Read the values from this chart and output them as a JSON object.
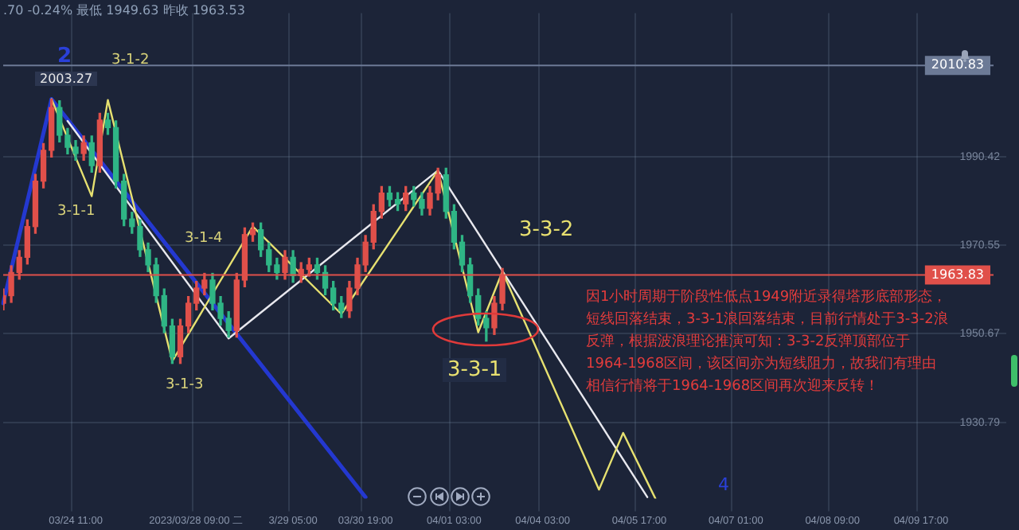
{
  "chart_data": {
    "type": "candlestick",
    "subtitle": ".70  -0.24%  最低 1949.63  昨收 1963.53",
    "categories": [
      null,
      null,
      null,
      null,
      null,
      null,
      null,
      null,
      null,
      "03/24 11:00",
      null,
      null,
      null,
      null,
      null,
      null,
      null,
      null,
      null,
      null,
      null,
      null,
      null,
      null,
      "2023/03/28 09:00 二",
      null,
      null,
      null,
      null,
      null,
      null,
      null,
      null,
      null,
      null,
      null,
      "3/29 05:00",
      null,
      null,
      null,
      null,
      null,
      null,
      null,
      null,
      "03/30 19:00",
      null,
      null,
      null,
      null,
      null,
      null,
      null,
      null,
      null,
      null,
      "04/01 03:00",
      null,
      null,
      null,
      null,
      null,
      null,
      null,
      null,
      null,
      null,
      "04/04 03:00",
      null,
      null,
      null,
      null,
      null,
      null,
      null,
      null,
      null,
      null,
      null,
      "04/05 17:00",
      null,
      null,
      null,
      null,
      null,
      null,
      null,
      null,
      null,
      null,
      null,
      "04/07 01:00",
      null,
      null,
      null,
      null,
      null,
      null,
      null,
      null,
      null,
      null,
      null,
      "04/08 09:00",
      null,
      null,
      null,
      null,
      null,
      null,
      null,
      null,
      null,
      null,
      "04/09 17:00",
      null,
      null,
      null,
      null,
      null,
      null,
      null,
      null,
      null
    ],
    "series": [
      {
        "type": "candlestick",
        "ohlc": [
          [
            1957.5,
            1960.7,
            1956.0,
            1959.2
          ],
          [
            1959.2,
            1965.9,
            1957.7,
            1964.4
          ],
          [
            1964.4,
            1969.3,
            1962.9,
            1967.8
          ],
          [
            1967.8,
            1976.2,
            1966.3,
            1974.7
          ],
          [
            1974.7,
            1986.4,
            1973.2,
            1984.9
          ],
          [
            1984.9,
            1993.3,
            1983.4,
            1991.8
          ],
          [
            1991.8,
            2003.27,
            1990.3,
            2001.4
          ],
          [
            2001.4,
            2002.9,
            1993.7,
            1995.2
          ],
          [
            1995.2,
            1996.7,
            1991.0,
            1992.5
          ],
          [
            1992.5,
            1994.0,
            1989.6,
            1991.1
          ],
          [
            1991.1,
            1995.0,
            1989.6,
            1993.5
          ],
          [
            1993.5,
            1995.0,
            1986.9,
            1988.4
          ],
          [
            1988.4,
            2000.1,
            1986.9,
            1998.6
          ],
          [
            1998.6,
            2000.1,
            1995.4,
            1996.9
          ],
          [
            1996.9,
            1998.4,
            1983.4,
            1984.9
          ],
          [
            1984.9,
            1986.4,
            1974.9,
            1976.4
          ],
          [
            1976.4,
            1977.9,
            1973.2,
            1974.7
          ],
          [
            1974.7,
            1976.2,
            1968.0,
            1969.5
          ],
          [
            1969.5,
            1971.0,
            1964.6,
            1966.1
          ],
          [
            1966.1,
            1967.6,
            1957.7,
            1959.2
          ],
          [
            1959.2,
            1960.7,
            1950.9,
            1952.4
          ],
          [
            1952.4,
            1953.9,
            1944.0,
            1945.5
          ],
          [
            1945.5,
            1953.9,
            1944.0,
            1952.4
          ],
          [
            1952.4,
            1959.0,
            1950.9,
            1957.5
          ],
          [
            1957.5,
            1962.4,
            1956.0,
            1960.9
          ],
          [
            1960.9,
            1964.2,
            1959.4,
            1962.7
          ],
          [
            1962.7,
            1964.2,
            1956.0,
            1957.5
          ],
          [
            1957.5,
            1959.0,
            1952.6,
            1954.1
          ],
          [
            1954.1,
            1955.6,
            1949.9,
            1951.4
          ],
          [
            1951.4,
            1964.2,
            1949.9,
            1962.7
          ],
          [
            1962.7,
            1974.4,
            1961.2,
            1972.9
          ],
          [
            1972.9,
            1975.5,
            1971.4,
            1974.0
          ],
          [
            1974.0,
            1975.5,
            1968.0,
            1969.5
          ],
          [
            1969.5,
            1971.0,
            1964.6,
            1966.1
          ],
          [
            1966.1,
            1967.6,
            1962.9,
            1964.4
          ],
          [
            1964.4,
            1969.3,
            1962.9,
            1967.8
          ],
          [
            1967.8,
            1969.3,
            1962.2,
            1963.7
          ],
          [
            1963.7,
            1966.6,
            1962.2,
            1965.1
          ],
          [
            1965.1,
            1967.6,
            1963.6,
            1966.1
          ],
          [
            1966.1,
            1967.6,
            1962.9,
            1964.4
          ],
          [
            1964.4,
            1965.9,
            1959.4,
            1960.9
          ],
          [
            1960.9,
            1962.4,
            1956.0,
            1957.5
          ],
          [
            1957.5,
            1959.0,
            1954.3,
            1955.8
          ],
          [
            1955.8,
            1962.4,
            1954.3,
            1960.9
          ],
          [
            1960.9,
            1967.6,
            1959.4,
            1966.1
          ],
          [
            1966.1,
            1972.7,
            1964.6,
            1971.2
          ],
          [
            1971.2,
            1979.6,
            1969.7,
            1978.1
          ],
          [
            1978.1,
            1983.7,
            1976.6,
            1982.2
          ],
          [
            1982.2,
            1983.7,
            1979.3,
            1980.8
          ],
          [
            1980.8,
            1982.3,
            1978.3,
            1979.8
          ],
          [
            1979.8,
            1983.7,
            1978.3,
            1982.2
          ],
          [
            1982.2,
            1983.7,
            1979.3,
            1980.8
          ],
          [
            1980.8,
            1982.3,
            1977.3,
            1978.8
          ],
          [
            1978.8,
            1983.7,
            1977.3,
            1982.2
          ],
          [
            1982.2,
            1987.8,
            1980.7,
            1986.3
          ],
          [
            1986.3,
            1987.8,
            1976.6,
            1978.1
          ],
          [
            1978.1,
            1979.6,
            1969.7,
            1971.2
          ],
          [
            1971.2,
            1972.7,
            1964.6,
            1966.1
          ],
          [
            1966.1,
            1967.6,
            1957.7,
            1959.2
          ],
          [
            1959.2,
            1960.7,
            1952.6,
            1954.1
          ],
          [
            1954.1,
            1955.6,
            1949.0,
            1952.0
          ],
          [
            1952.0,
            1959.0,
            1950.5,
            1957.5
          ],
          [
            1957.5,
            1965.3,
            1956.0,
            1963.83
          ],
          null,
          null,
          null,
          null,
          null,
          null,
          null,
          null,
          null,
          null,
          null,
          null,
          null,
          null,
          null,
          null,
          null,
          null,
          null,
          null,
          null,
          null,
          null,
          null,
          null,
          null,
          null,
          null,
          null,
          null,
          null,
          null,
          null,
          null,
          null,
          null,
          null,
          null,
          null,
          null,
          null,
          null,
          null,
          null,
          null,
          null,
          null,
          null,
          null,
          null,
          null,
          null,
          null,
          null,
          null,
          null,
          null,
          null,
          null,
          null,
          null
        ],
        "colors": [
          "#e0504a",
          "#e0504a",
          "#e0504a",
          "#e0504a",
          "#e0504a",
          "#e0504a",
          "#e0504a",
          "#2fb585",
          "#2fb585",
          "#2fb585",
          "#e0504a",
          "#2fb585",
          "#e0504a",
          "#2fb585",
          "#2fb585",
          "#2fb585",
          "#2fb585",
          "#2fb585",
          "#2fb585",
          "#2fb585",
          "#2fb585",
          "#2fb585",
          "#e0504a",
          "#e0504a",
          "#e0504a",
          "#e0504a",
          "#2fb585",
          "#2fb585",
          "#2fb585",
          "#e0504a",
          "#e0504a",
          "#e0504a",
          "#2fb585",
          "#2fb585",
          "#2fb585",
          "#e0504a",
          "#2fb585",
          "#e0504a",
          "#e0504a",
          "#2fb585",
          "#2fb585",
          "#2fb585",
          "#2fb585",
          "#e0504a",
          "#e0504a",
          "#e0504a",
          "#e0504a",
          "#e0504a",
          "#2fb585",
          "#2fb585",
          "#e0504a",
          "#2fb585",
          "#2fb585",
          "#e0504a",
          "#e0504a",
          "#2fb585",
          "#2fb585",
          "#2fb585",
          "#2fb585",
          "#2fb585",
          "#2fb585",
          "#e0504a",
          "#e0504a",
          null,
          null,
          null,
          null,
          null,
          null,
          null,
          null,
          null,
          null,
          null,
          null,
          null,
          null,
          null,
          null,
          null,
          null,
          null,
          null,
          null,
          null,
          null,
          null,
          null,
          null,
          null,
          null,
          null,
          null,
          null,
          null,
          null,
          null,
          null,
          null,
          null,
          null,
          null,
          null,
          null,
          null,
          null,
          null,
          null,
          null,
          null,
          null,
          null,
          null,
          null,
          null,
          null,
          null,
          null,
          null,
          null,
          null,
          null,
          null,
          null
        ]
      },
      {
        "type": "line",
        "color": "#2438d0",
        "values": [
          1957.5,
          null,
          null,
          null,
          null,
          null,
          2003.3,
          null,
          null,
          null,
          null,
          null,
          null,
          null,
          null,
          null,
          null,
          null,
          null,
          null,
          null,
          null,
          null,
          null,
          null,
          null,
          null,
          null,
          null,
          null,
          null,
          null,
          null,
          null,
          null,
          null,
          null,
          null,
          null,
          null,
          null,
          null,
          null,
          null,
          null,
          1914.0,
          null,
          null,
          null,
          null,
          null,
          null,
          null,
          null,
          null,
          null,
          null,
          null,
          null,
          null,
          null,
          null,
          null,
          null,
          null,
          null,
          null,
          null,
          null,
          null,
          null,
          null,
          null,
          null,
          null,
          null,
          null,
          null,
          null,
          null,
          null,
          null,
          null,
          null,
          null,
          null,
          null,
          null,
          null,
          null,
          null,
          null,
          null,
          null,
          null,
          null,
          null,
          null,
          null,
          null,
          null,
          null,
          null,
          null,
          null,
          null,
          null,
          null,
          null,
          null,
          null,
          null,
          null,
          null,
          null,
          null,
          null,
          null,
          null,
          null,
          null,
          null,
          null,
          null
        ]
      },
      {
        "type": "line",
        "color": "#e8e8ee",
        "values": [
          null,
          null,
          null,
          null,
          null,
          null,
          null,
          null,
          1998.4,
          null,
          null,
          null,
          null,
          null,
          null,
          null,
          null,
          null,
          null,
          null,
          null,
          null,
          null,
          null,
          null,
          null,
          null,
          null,
          1949.6,
          null,
          null,
          null,
          null,
          null,
          null,
          null,
          null,
          null,
          null,
          null,
          null,
          null,
          null,
          null,
          null,
          null,
          null,
          null,
          null,
          null,
          null,
          null,
          null,
          null,
          1987.3,
          null,
          null,
          null,
          null,
          null,
          null,
          null,
          null,
          null,
          null,
          null,
          null,
          null,
          null,
          null,
          null,
          null,
          null,
          null,
          null,
          null,
          null,
          null,
          null,
          null,
          1914.0,
          null,
          null,
          null,
          null,
          null,
          null,
          null,
          null,
          null,
          null,
          null,
          null,
          null,
          null,
          null,
          null,
          null,
          null,
          null,
          null,
          null,
          null,
          null,
          null,
          null,
          null,
          null,
          null,
          null,
          null,
          null,
          null,
          null,
          null,
          null,
          null,
          null,
          null,
          null,
          null,
          null,
          null,
          null
        ]
      },
      {
        "type": "line",
        "color": "#e6e070",
        "values": [
          null,
          null,
          null,
          null,
          null,
          null,
          2003.3,
          null,
          null,
          null,
          null,
          1981.5,
          null,
          2003.1,
          null,
          null,
          null,
          null,
          null,
          null,
          null,
          1944.5,
          null,
          null,
          null,
          null,
          null,
          null,
          null,
          null,
          null,
          1974.7,
          null,
          null,
          null,
          null,
          null,
          null,
          null,
          null,
          null,
          null,
          1955.1,
          null,
          null,
          null,
          null,
          null,
          null,
          null,
          null,
          null,
          null,
          null,
          1987.3,
          null,
          null,
          null,
          null,
          1951.0,
          null,
          null,
          1964.6,
          null,
          null,
          null,
          null,
          null,
          null,
          null,
          null,
          null,
          null,
          null,
          1915.7,
          null,
          null,
          1928.4,
          null,
          null,
          null,
          1913.7,
          null,
          null,
          null,
          null,
          null,
          null,
          null,
          null,
          null,
          null,
          null,
          null,
          null,
          null,
          null,
          null,
          null,
          null,
          null,
          null,
          null,
          null,
          null,
          null,
          null,
          null,
          null,
          null,
          null,
          null,
          null,
          null,
          null,
          null,
          null,
          null,
          null,
          null,
          null,
          null,
          null,
          null
        ]
      }
    ],
    "ylim": [
      1913.7,
      2022.6
    ],
    "yticks": [
      1990.42,
      1970.55,
      1950.67,
      1930.79
    ],
    "ref_lines": [
      {
        "axis": "y",
        "value": 2010.83,
        "label": "2010.83",
        "color": "#6c7a96"
      },
      {
        "axis": "y",
        "value": 1963.83,
        "label": "1963.83",
        "color": "#e0504a"
      }
    ],
    "annotations": [
      "2",
      "2003.27",
      "3-1-2",
      "3-1-1",
      "3-1-4",
      "3-1-3",
      "3-3-2",
      "3-3-1",
      "4",
      "因1小时周期于阶段性低点1949附近录得塔形底部形态，短线回落结束，3-3-1浪回落结束，目前行情处于3-3-2浪反弹，根据波浪理论推演可知：3-3-2反弹顶部位于1964-1968区间，该区间亦为短线阻力，故我们有理由相信行情将于1964-1968区间再次迎来反转！"
    ],
    "grid": true,
    "legend": false
  }
}
